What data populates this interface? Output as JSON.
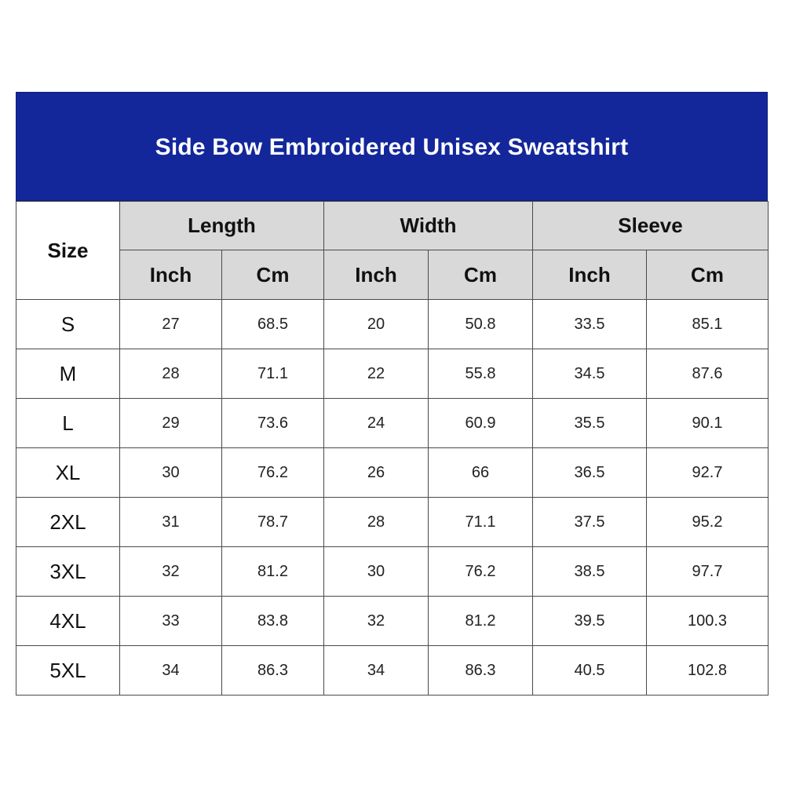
{
  "title": "Side Bow Embroidered Unisex Sweatshirt",
  "size_header": "Size",
  "groups": [
    "Length",
    "Width",
    "Sleeve"
  ],
  "units": [
    "Inch",
    "Cm",
    "Inch",
    "Cm",
    "Inch",
    "Cm"
  ],
  "rows": [
    {
      "size": "S",
      "values": [
        "27",
        "68.5",
        "20",
        "50.8",
        "33.5",
        "85.1"
      ]
    },
    {
      "size": "M",
      "values": [
        "28",
        "71.1",
        "22",
        "55.8",
        "34.5",
        "87.6"
      ]
    },
    {
      "size": "L",
      "values": [
        "29",
        "73.6",
        "24",
        "60.9",
        "35.5",
        "90.1"
      ]
    },
    {
      "size": "XL",
      "values": [
        "30",
        "76.2",
        "26",
        "66",
        "36.5",
        "92.7"
      ]
    },
    {
      "size": "2XL",
      "values": [
        "31",
        "78.7",
        "28",
        "71.1",
        "37.5",
        "95.2"
      ]
    },
    {
      "size": "3XL",
      "values": [
        "32",
        "81.2",
        "30",
        "76.2",
        "38.5",
        "97.7"
      ]
    },
    {
      "size": "4XL",
      "values": [
        "33",
        "83.8",
        "32",
        "81.2",
        "39.5",
        "100.3"
      ]
    },
    {
      "size": "5XL",
      "values": [
        "34",
        "86.3",
        "34",
        "86.3",
        "40.5",
        "102.8"
      ]
    }
  ],
  "colors": {
    "title_background": "#13279b",
    "title_text": "#ffffff",
    "header_background": "#d9d9d9"
  }
}
